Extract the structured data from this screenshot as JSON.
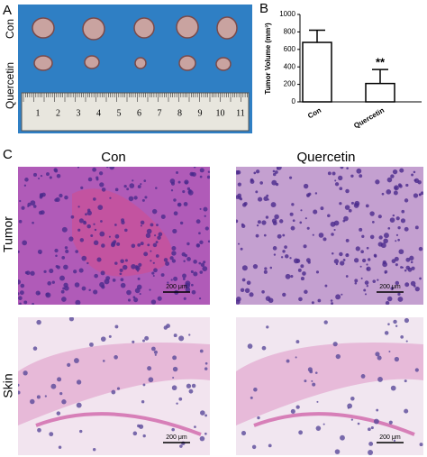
{
  "panel_labels": [
    "A",
    "B",
    "C"
  ],
  "panel_a": {
    "row_labels": [
      "Con",
      "Quercetin"
    ],
    "ruler_numbers": [
      1,
      2,
      3,
      4,
      5,
      6,
      7,
      8,
      9,
      10,
      11
    ]
  },
  "chart_data": {
    "type": "bar",
    "ylabel": "Tumor Volume (mm³)",
    "categories": [
      "Con",
      "Quercetin"
    ],
    "values": [
      680,
      210
    ],
    "errors": [
      140,
      160
    ],
    "color": "#ffffff",
    "annotation": "**",
    "ylim": [
      0,
      1000
    ],
    "yticks": [
      0,
      200,
      400,
      600,
      800,
      1000
    ]
  },
  "panel_c": {
    "column_labels": [
      "Con",
      "Quercetin"
    ],
    "row_labels": [
      "Tumor",
      "Skin"
    ],
    "scale_bars": [
      "200 μm",
      "200 μm",
      "200 μm",
      "200 μm"
    ]
  }
}
